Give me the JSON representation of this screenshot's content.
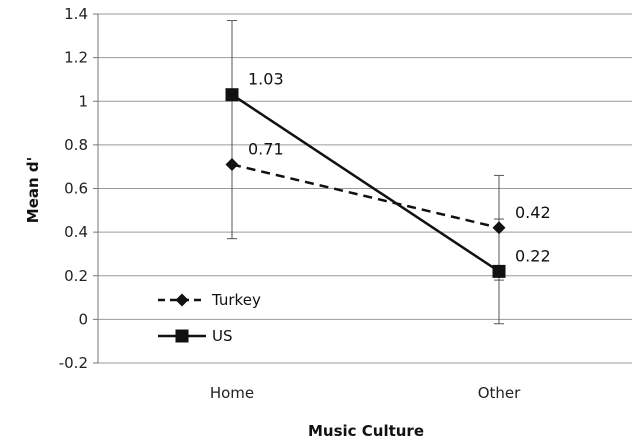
{
  "chart_data": {
    "type": "line",
    "title": "",
    "xlabel": "Music Culture",
    "ylabel": "Mean d'",
    "categories": [
      "Home",
      "Other"
    ],
    "ylim": [
      -0.2,
      1.4
    ],
    "yticks": [
      -0.2,
      0,
      0.2,
      0.4,
      0.6,
      0.8,
      1,
      1.2,
      1.4
    ],
    "ytick_labels": [
      "-0.2",
      "0",
      "0.2",
      "0.4",
      "0.6",
      "0.8",
      "1",
      "1.2",
      "1.4"
    ],
    "grid": true,
    "legend_position": "bottom-left",
    "series": [
      {
        "name": "Turkey",
        "values": [
          0.71,
          0.42
        ],
        "labels": [
          "0.71",
          "0.42"
        ],
        "error_low": [
          null,
          0.18
        ],
        "error_high": [
          null,
          0.66
        ],
        "line_style": "dashed",
        "marker": "diamond",
        "color": "#111111"
      },
      {
        "name": "US",
        "values": [
          1.03,
          0.22
        ],
        "labels": [
          "1.03",
          "0.22"
        ],
        "error_low": [
          0.37,
          -0.02
        ],
        "error_high": [
          1.37,
          0.46
        ],
        "line_style": "solid",
        "marker": "square",
        "color": "#111111"
      }
    ]
  }
}
